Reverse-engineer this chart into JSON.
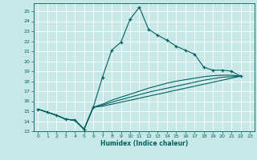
{
  "xlabel": "Humidex (Indice chaleur)",
  "xlim": [
    -0.5,
    23.5
  ],
  "ylim": [
    13,
    25.8
  ],
  "yticks": [
    13,
    14,
    15,
    16,
    17,
    18,
    19,
    20,
    21,
    22,
    23,
    24,
    25
  ],
  "xticks": [
    0,
    1,
    2,
    3,
    4,
    5,
    6,
    7,
    8,
    9,
    10,
    11,
    12,
    13,
    14,
    15,
    16,
    17,
    18,
    19,
    20,
    21,
    22,
    23
  ],
  "bg_color": "#c8e8e8",
  "line_color": "#006060",
  "grid_color": "#ffffff",
  "line_main": [
    [
      0,
      15.2
    ],
    [
      1,
      14.9
    ],
    [
      2,
      14.6
    ],
    [
      3,
      14.2
    ],
    [
      4,
      14.1
    ],
    [
      5,
      13.2
    ],
    [
      6,
      15.4
    ],
    [
      7,
      18.4
    ],
    [
      8,
      21.1
    ],
    [
      9,
      21.9
    ],
    [
      10,
      24.2
    ],
    [
      11,
      25.4
    ],
    [
      12,
      23.2
    ],
    [
      13,
      22.6
    ],
    [
      14,
      22.1
    ],
    [
      15,
      21.5
    ],
    [
      16,
      21.1
    ],
    [
      17,
      20.7
    ],
    [
      18,
      19.4
    ],
    [
      19,
      19.1
    ],
    [
      20,
      19.1
    ],
    [
      21,
      19.0
    ],
    [
      22,
      18.5
    ]
  ],
  "line_low1": [
    [
      0,
      15.2
    ],
    [
      1,
      14.9
    ],
    [
      2,
      14.6
    ],
    [
      3,
      14.2
    ],
    [
      4,
      14.1
    ],
    [
      5,
      13.2
    ],
    [
      6,
      15.4
    ],
    [
      7,
      15.5
    ],
    [
      8,
      15.7
    ],
    [
      9,
      15.9
    ],
    [
      10,
      16.1
    ],
    [
      11,
      16.3
    ],
    [
      12,
      16.5
    ],
    [
      13,
      16.7
    ],
    [
      14,
      16.9
    ],
    [
      15,
      17.1
    ],
    [
      16,
      17.3
    ],
    [
      17,
      17.5
    ],
    [
      18,
      17.7
    ],
    [
      19,
      17.9
    ],
    [
      20,
      18.1
    ],
    [
      21,
      18.3
    ],
    [
      22,
      18.5
    ]
  ],
  "line_low2": [
    [
      0,
      15.2
    ],
    [
      1,
      14.9
    ],
    [
      2,
      14.6
    ],
    [
      3,
      14.2
    ],
    [
      4,
      14.1
    ],
    [
      5,
      13.2
    ],
    [
      6,
      15.4
    ],
    [
      7,
      15.6
    ],
    [
      8,
      15.9
    ],
    [
      9,
      16.15
    ],
    [
      10,
      16.4
    ],
    [
      11,
      16.65
    ],
    [
      12,
      16.9
    ],
    [
      13,
      17.1
    ],
    [
      14,
      17.3
    ],
    [
      15,
      17.5
    ],
    [
      16,
      17.7
    ],
    [
      17,
      17.9
    ],
    [
      18,
      18.1
    ],
    [
      19,
      18.25
    ],
    [
      20,
      18.4
    ],
    [
      21,
      18.45
    ],
    [
      22,
      18.5
    ]
  ],
  "line_low3": [
    [
      0,
      15.2
    ],
    [
      1,
      14.9
    ],
    [
      2,
      14.6
    ],
    [
      3,
      14.2
    ],
    [
      4,
      14.1
    ],
    [
      5,
      13.2
    ],
    [
      6,
      15.4
    ],
    [
      7,
      15.7
    ],
    [
      8,
      16.1
    ],
    [
      9,
      16.4
    ],
    [
      10,
      16.7
    ],
    [
      11,
      17.0
    ],
    [
      12,
      17.3
    ],
    [
      13,
      17.55
    ],
    [
      14,
      17.8
    ],
    [
      15,
      18.0
    ],
    [
      16,
      18.15
    ],
    [
      17,
      18.3
    ],
    [
      18,
      18.45
    ],
    [
      19,
      18.55
    ],
    [
      20,
      18.6
    ],
    [
      21,
      18.6
    ],
    [
      22,
      18.5
    ]
  ]
}
